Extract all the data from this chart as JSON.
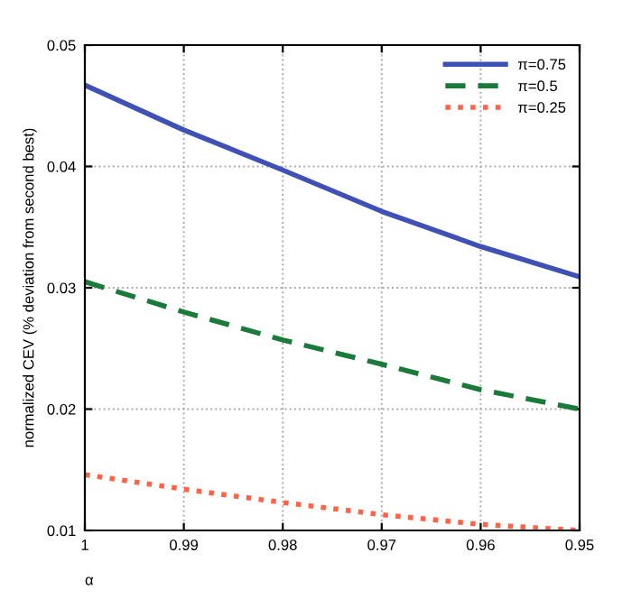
{
  "chart_data": {
    "type": "line",
    "xlabel": "α",
    "ylabel": "normalized CEV (% deviation from second best)",
    "x": [
      1,
      0.99,
      0.98,
      0.97,
      0.96,
      0.95
    ],
    "series": [
      {
        "name": "π=0.75",
        "color": "#3f51b5",
        "line_style": "solid",
        "values": [
          0.0467,
          0.043,
          0.0397,
          0.0363,
          0.0334,
          0.0309
        ]
      },
      {
        "name": "π=0.5",
        "color": "#1a7a3a",
        "line_style": "dashed",
        "values": [
          0.0305,
          0.028,
          0.0257,
          0.0237,
          0.0216,
          0.02
        ]
      },
      {
        "name": "π=0.25",
        "color": "#ff6347",
        "line_style": "dotted",
        "values": [
          0.0146,
          0.0134,
          0.0123,
          0.0113,
          0.0105,
          0.01
        ]
      }
    ],
    "xlim": [
      1,
      0.95
    ],
    "xticks": [
      1,
      0.99,
      0.98,
      0.97,
      0.96,
      0.95
    ],
    "ylim": [
      0.01,
      0.05
    ],
    "yticks": [
      0.01,
      0.02,
      0.03,
      0.04,
      0.05
    ],
    "grid": true,
    "legend": "top right"
  }
}
